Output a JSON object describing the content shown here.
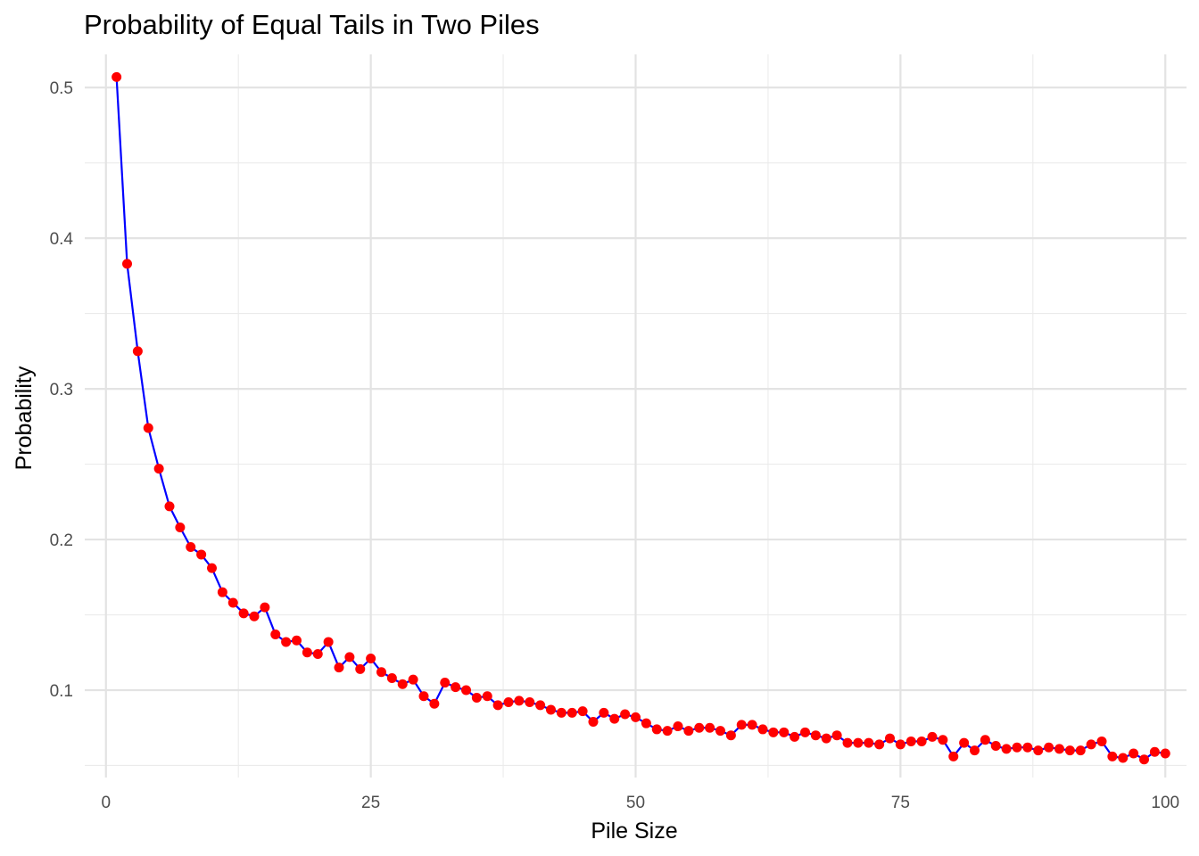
{
  "chart_data": {
    "type": "line",
    "title": "Probability of Equal Tails in Two Piles",
    "xlabel": "Pile Size",
    "ylabel": "Probability",
    "xlim": [
      -2,
      102
    ],
    "ylim": [
      0.042,
      0.522
    ],
    "x_ticks": [
      0,
      25,
      50,
      75,
      100
    ],
    "x_tick_labels": [
      "0",
      "25",
      "50",
      "75",
      "100"
    ],
    "y_ticks": [
      0.1,
      0.2,
      0.3,
      0.4,
      0.5
    ],
    "y_tick_labels": [
      "0.1",
      "0.2",
      "0.3",
      "0.4",
      "0.5"
    ],
    "grid": true,
    "line_color": "#0000ff",
    "point_color": "#ff0000",
    "series": [
      {
        "x": [
          1,
          2,
          3,
          4,
          5,
          6,
          7,
          8,
          9,
          10,
          11,
          12,
          13,
          14,
          15,
          16,
          17,
          18,
          19,
          20,
          21,
          22,
          23,
          24,
          25,
          26,
          27,
          28,
          29,
          30,
          31,
          32,
          33,
          34,
          35,
          36,
          37,
          38,
          39,
          40,
          41,
          42,
          43,
          44,
          45,
          46,
          47,
          48,
          49,
          50,
          51,
          52,
          53,
          54,
          55,
          56,
          57,
          58,
          59,
          60,
          61,
          62,
          63,
          64,
          65,
          66,
          67,
          68,
          69,
          70,
          71,
          72,
          73,
          74,
          75,
          76,
          77,
          78,
          79,
          80,
          81,
          82,
          83,
          84,
          85,
          86,
          87,
          88,
          89,
          90,
          91,
          92,
          93,
          94,
          95,
          96,
          97,
          98,
          99,
          100
        ],
        "values": [
          0.507,
          0.383,
          0.325,
          0.274,
          0.247,
          0.222,
          0.208,
          0.195,
          0.19,
          0.181,
          0.165,
          0.158,
          0.151,
          0.149,
          0.155,
          0.137,
          0.132,
          0.133,
          0.125,
          0.124,
          0.132,
          0.115,
          0.122,
          0.114,
          0.121,
          0.112,
          0.108,
          0.104,
          0.107,
          0.096,
          0.091,
          0.105,
          0.102,
          0.1,
          0.095,
          0.096,
          0.09,
          0.092,
          0.093,
          0.092,
          0.09,
          0.087,
          0.085,
          0.085,
          0.086,
          0.079,
          0.085,
          0.081,
          0.084,
          0.082,
          0.078,
          0.074,
          0.073,
          0.076,
          0.073,
          0.075,
          0.075,
          0.073,
          0.07,
          0.077,
          0.077,
          0.074,
          0.072,
          0.072,
          0.069,
          0.072,
          0.07,
          0.068,
          0.07,
          0.065,
          0.065,
          0.065,
          0.064,
          0.068,
          0.064,
          0.066,
          0.066,
          0.069,
          0.067,
          0.056,
          0.065,
          0.06,
          0.067,
          0.063,
          0.061,
          0.062,
          0.062,
          0.06,
          0.062,
          0.061,
          0.06,
          0.06,
          0.064,
          0.066,
          0.056,
          0.055,
          0.058,
          0.054,
          0.059,
          0.058
        ]
      }
    ]
  }
}
